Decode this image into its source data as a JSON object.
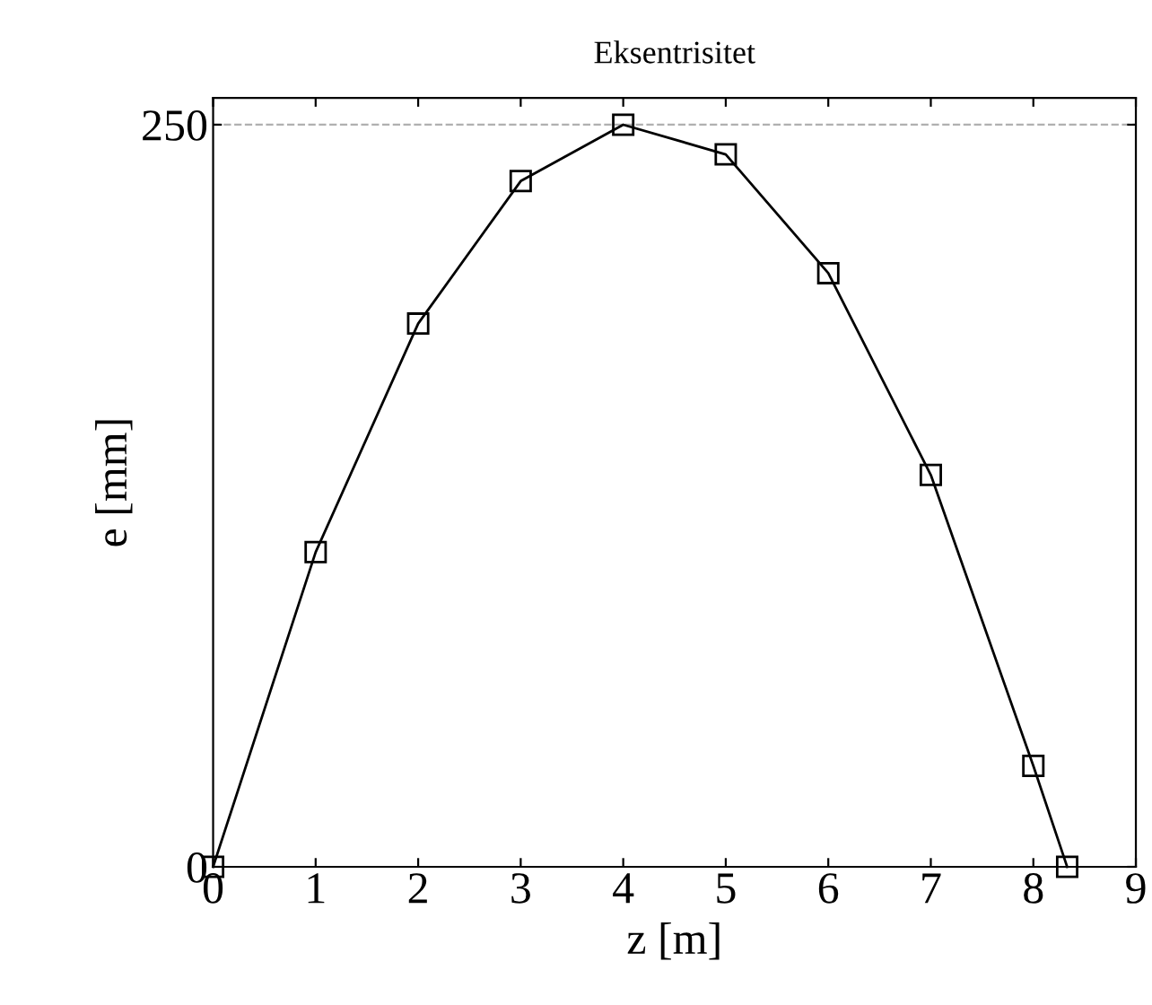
{
  "chart_data": {
    "type": "line",
    "title": "Eksentrisitet",
    "xlabel": "z [m]",
    "ylabel": "e [mm]",
    "x": [
      0,
      1,
      2,
      3,
      4,
      5,
      6,
      7,
      8,
      8.33
    ],
    "series": [
      {
        "color": "#000000",
        "values": [
          0,
          106,
          183,
          231,
          250,
          240,
          200,
          132,
          34,
          0
        ]
      }
    ],
    "xlim": [
      0,
      9
    ],
    "xticks": [
      0,
      1,
      2,
      3,
      4,
      5,
      6,
      7,
      8,
      9
    ],
    "ylim": [
      0,
      259
    ],
    "yticks": [
      0,
      250
    ],
    "ref_lines": [
      {
        "axis": "y",
        "value": 250,
        "color": "#b0b0b0",
        "line_style": "dashed"
      }
    ],
    "marker": "square",
    "line_style": "solid",
    "grid": false,
    "legend": false
  }
}
